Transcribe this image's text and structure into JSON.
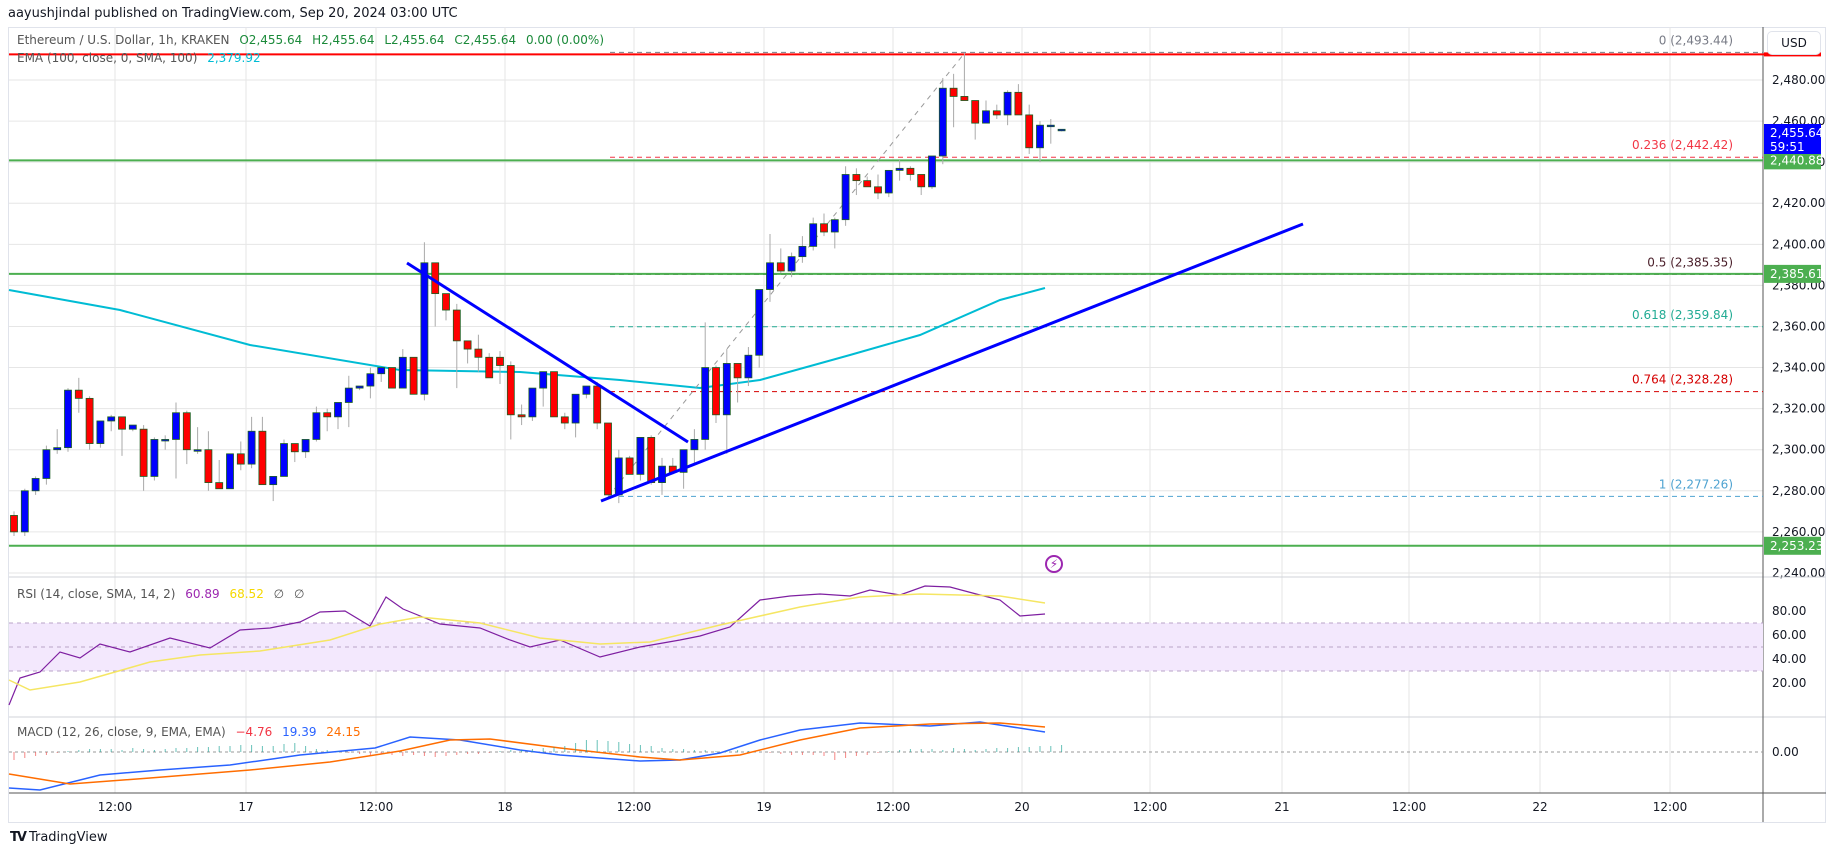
{
  "header": {
    "published": "aayushjindal published on TradingView.com, Sep 20, 2024 03:00 UTC"
  },
  "legend": {
    "symbol": "Ethereum / U.S. Dollar, 1h, KRAKEN",
    "open": "O2,455.64",
    "high": "H2,455.64",
    "low": "L2,455.64",
    "close": "C2,455.64",
    "change": "0.00 (0.00%)",
    "ema_label": "EMA (100, close, 0, SMA, 100)",
    "ema_value": "2,379.92",
    "rsi_label": "RSI (14, close, SMA, 14, 2)",
    "rsi_value": "60.89",
    "rsi_sma_value": "68.52",
    "rsi_extra1": "∅",
    "rsi_extra2": "∅",
    "macd_label": "MACD (12, 26, close, 9, EMA, EMA)",
    "macd_hist": "−4.76",
    "macd_value": "19.39",
    "macd_signal": "24.15"
  },
  "price_axis": {
    "currency_button": "USD",
    "ticks": [
      "2,480.00",
      "2,460.00",
      "2,440.00",
      "2,420.00",
      "2,400.00",
      "2,380.00",
      "2,360.00",
      "2,340.00",
      "2,320.00",
      "2,300.00",
      "2,280.00",
      "2,260.00",
      "2,240.00"
    ],
    "last_price_label": "2,455.64",
    "countdown": "59:51",
    "level_labels": [
      "2,440.88",
      "2,385.61",
      "2,253.23"
    ],
    "rsi_ticks": [
      "80.00",
      "60.00",
      "40.00",
      "20.00"
    ],
    "macd_ticks": [
      "0.00"
    ]
  },
  "time_axis": {
    "ticks": [
      "12:00",
      "17",
      "12:00",
      "18",
      "12:00",
      "19",
      "12:00",
      "20",
      "12:00",
      "21",
      "12:00",
      "22",
      "12:00"
    ]
  },
  "fib_labels": [
    {
      "text": "0 (2,493.44)",
      "color": "#787b86"
    },
    {
      "text": "0.236 (2,442.42)",
      "color": "#f23645"
    },
    {
      "text": "0.5 (2,385.35)",
      "color": "#4a1f2a"
    },
    {
      "text": "0.618 (2,359.84)",
      "color": "#22ab94"
    },
    {
      "text": "0.764 (2,328.28)",
      "color": "#d50000"
    },
    {
      "text": "1 (2,277.26)",
      "color": "#4fa3d1"
    }
  ],
  "footer": {
    "logo_mark": "𝗧𝗩",
    "logo_text": "TradingView"
  },
  "icons": {
    "alert": "⚡"
  },
  "colors": {
    "up": "#0000ff",
    "down": "#ff0000",
    "border": "#1b5e20",
    "ema": "#00bcd4",
    "support": "#4caf50",
    "resistance": "#ff0000",
    "trendline": "#0000ff",
    "rsi": "#7e1fa1",
    "rsi_sma": "#f5e663",
    "macd": "#2962ff",
    "macd_signal": "#ff6d00"
  },
  "chart_data": {
    "type": "candlestick",
    "title": "Ethereum / U.S. Dollar, 1h, KRAKEN",
    "ylabel": "USD",
    "ylim": [
      2240,
      2500
    ],
    "x_start": "Sep 16 03:00",
    "interval": "1h",
    "candles": [
      [
        2268,
        2270,
        2258,
        2260
      ],
      [
        2260,
        2281,
        2258,
        2280
      ],
      [
        2280,
        2287,
        2278,
        2286
      ],
      [
        2286,
        2302,
        2283,
        2300
      ],
      [
        2300,
        2310,
        2298,
        2301
      ],
      [
        2301,
        2330,
        2299,
        2329
      ],
      [
        2329,
        2335,
        2318,
        2325
      ],
      [
        2325,
        2326,
        2300,
        2303
      ],
      [
        2303,
        2314,
        2301,
        2314
      ],
      [
        2314,
        2317,
        2309,
        2316
      ],
      [
        2316,
        2316,
        2297,
        2310
      ],
      [
        2310,
        2311,
        2309,
        2312
      ],
      [
        2310,
        2312,
        2280,
        2287
      ],
      [
        2287,
        2306,
        2285,
        2305
      ],
      [
        2305,
        2307,
        2300,
        2305
      ],
      [
        2305,
        2323,
        2286,
        2318
      ],
      [
        2318,
        2319,
        2293,
        2300
      ],
      [
        2300,
        2311,
        2298,
        2300
      ],
      [
        2300,
        2309,
        2280,
        2284
      ],
      [
        2284,
        2295,
        2283,
        2281
      ],
      [
        2281,
        2297,
        2285,
        2298
      ],
      [
        2298,
        2304,
        2290,
        2293
      ],
      [
        2293,
        2316,
        2291,
        2309
      ],
      [
        2309,
        2316,
        2284,
        2283
      ],
      [
        2283,
        2284,
        2275,
        2287
      ],
      [
        2287,
        2305,
        2290,
        2303
      ],
      [
        2303,
        2300,
        2294,
        2299
      ],
      [
        2299,
        2302,
        2296,
        2305
      ],
      [
        2305,
        2321,
        2304,
        2318
      ],
      [
        2318,
        2320,
        2309,
        2316
      ],
      [
        2316,
        2319,
        2310,
        2323
      ],
      [
        2323,
        2336,
        2311,
        2330
      ],
      [
        2330,
        2329,
        2330,
        2331
      ],
      [
        2331,
        2340,
        2325,
        2337
      ],
      [
        2337,
        2339,
        2333,
        2340
      ],
      [
        2340,
        2339,
        2330,
        2330
      ],
      [
        2330,
        2349,
        2330,
        2345
      ],
      [
        2345,
        2345,
        2329,
        2327
      ],
      [
        2327,
        2401,
        2324,
        2391
      ],
      [
        2391,
        2387,
        2360,
        2376
      ],
      [
        2376,
        2370,
        2363,
        2368
      ],
      [
        2368,
        2371,
        2330,
        2353
      ],
      [
        2353,
        2353,
        2342,
        2349
      ],
      [
        2349,
        2356,
        2338,
        2345
      ],
      [
        2345,
        2347,
        2335,
        2335
      ],
      [
        2345,
        2348,
        2332,
        2341
      ],
      [
        2341,
        2343,
        2305,
        2317
      ],
      [
        2317,
        2322,
        2312,
        2316
      ],
      [
        2316,
        2326,
        2314,
        2330
      ],
      [
        2330,
        2336,
        2321,
        2338
      ],
      [
        2338,
        2337,
        2318,
        2316
      ],
      [
        2316,
        2318,
        2310,
        2313
      ],
      [
        2313,
        2325,
        2306,
        2327
      ],
      [
        2327,
        2331,
        2325,
        2331
      ],
      [
        2331,
        2333,
        2310,
        2313
      ],
      [
        2313,
        2313,
        2278,
        2278
      ],
      [
        2278,
        2300,
        2274,
        2296
      ],
      [
        2296,
        2297,
        2288,
        2288
      ],
      [
        2288,
        2301,
        2285,
        2306
      ],
      [
        2306,
        2307,
        2283,
        2284
      ],
      [
        2284,
        2296,
        2278,
        2292
      ],
      [
        2292,
        2296,
        2288,
        2289
      ],
      [
        2289,
        2300,
        2281,
        2300
      ],
      [
        2300,
        2310,
        2293,
        2305
      ],
      [
        2305,
        2362,
        2300,
        2340
      ],
      [
        2340,
        2341,
        2313,
        2317
      ],
      [
        2317,
        2349,
        2298,
        2342
      ],
      [
        2342,
        2341,
        2323,
        2335
      ],
      [
        2335,
        2350,
        2331,
        2346
      ],
      [
        2346,
        2376,
        2340,
        2378
      ],
      [
        2378,
        2405,
        2372,
        2391
      ],
      [
        2391,
        2398,
        2386,
        2387
      ],
      [
        2387,
        2396,
        2384,
        2394
      ],
      [
        2394,
        2404,
        2391,
        2399
      ],
      [
        2399,
        2413,
        2397,
        2410
      ],
      [
        2410,
        2415,
        2404,
        2406
      ],
      [
        2406,
        2413,
        2398,
        2412
      ],
      [
        2412,
        2438,
        2409,
        2434
      ],
      [
        2434,
        2437,
        2424,
        2431
      ],
      [
        2431,
        2433,
        2428,
        2428
      ],
      [
        2428,
        2434,
        2422,
        2425
      ],
      [
        2425,
        2436,
        2423,
        2436
      ],
      [
        2436,
        2441,
        2431,
        2437
      ],
      [
        2437,
        2438,
        2431,
        2434
      ],
      [
        2434,
        2434,
        2424,
        2428
      ],
      [
        2428,
        2443,
        2427,
        2443
      ],
      [
        2443,
        2481,
        2439,
        2476
      ],
      [
        2476,
        2483,
        2457,
        2472
      ],
      [
        2472,
        2493,
        2470,
        2470
      ],
      [
        2470,
        2470,
        2451,
        2459
      ],
      [
        2459,
        2470,
        2462,
        2465
      ],
      [
        2465,
        2468,
        2461,
        2463
      ],
      [
        2463,
        2475,
        2458,
        2474
      ],
      [
        2474,
        2478,
        2464,
        2463
      ],
      [
        2463,
        2468,
        2444,
        2447
      ],
      [
        2447,
        2460,
        2440,
        2458
      ],
      [
        2458,
        2461,
        2449,
        2458
      ],
      [
        2456,
        2456,
        2455,
        2456
      ]
    ],
    "ema100": {
      "note": "teal moving average line",
      "approx_points": [
        [
          0,
          2385
        ],
        [
          40,
          2341
        ],
        [
          60,
          2333
        ],
        [
          70,
          2340
        ],
        [
          90,
          2372
        ],
        [
          96,
          2380
        ]
      ]
    },
    "horizontal_levels": [
      2493.44,
      2440.88,
      2385.61,
      2253.23
    ],
    "fibonacci": {
      "0": 2493.44,
      "0.236": 2442.42,
      "0.5": 2385.35,
      "0.618": 2359.84,
      "0.764": 2328.28,
      "1": 2277.26
    },
    "trendlines": [
      {
        "type": "bearish",
        "from": [
          "Sep 17 14:00",
          2392
        ],
        "to": [
          "Sep 18 17:00",
          2305
        ]
      },
      {
        "type": "bullish",
        "from": [
          "Sep 18 10:00",
          2277
        ],
        "to": [
          "Sep 21 03:00",
          2411
        ]
      }
    ],
    "indicators": {
      "rsi": {
        "period": 14,
        "value": 60.89,
        "sma": 68.52,
        "range": [
          0,
          100
        ],
        "bands": [
          30,
          70
        ]
      },
      "macd": {
        "fast": 12,
        "slow": 26,
        "signal": 9,
        "hist": -4.76,
        "macd": 19.39,
        "signal_value": 24.15
      }
    },
    "xlabel": "",
    "x_ticks": [
      "12:00",
      "17",
      "12:00",
      "18",
      "12:00",
      "19",
      "12:00",
      "20",
      "12:00",
      "21",
      "12:00",
      "22",
      "12:00"
    ]
  }
}
